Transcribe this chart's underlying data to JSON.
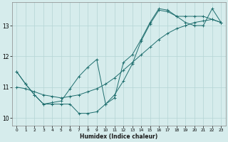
{
  "xlabel": "Humidex (Indice chaleur)",
  "xlim": [
    -0.5,
    23.5
  ],
  "ylim": [
    9.75,
    13.75
  ],
  "yticks": [
    10,
    11,
    12,
    13
  ],
  "xticks": [
    0,
    1,
    2,
    3,
    4,
    5,
    6,
    7,
    8,
    9,
    10,
    11,
    12,
    13,
    14,
    15,
    16,
    17,
    18,
    19,
    20,
    21,
    22,
    23
  ],
  "background_color": "#d6ecec",
  "grid_color": "#b4d4d4",
  "line_color": "#1e6e6e",
  "line1_y": [
    11.5,
    11.1,
    10.75,
    10.45,
    10.45,
    10.45,
    10.45,
    10.15,
    10.15,
    10.2,
    10.45,
    10.75,
    11.2,
    11.75,
    12.5,
    13.05,
    13.5,
    13.45,
    13.3,
    13.3,
    13.3,
    13.3,
    13.2,
    13.1
  ],
  "line2_y": [
    11.0,
    10.95,
    10.85,
    10.75,
    10.7,
    10.65,
    10.7,
    10.75,
    10.85,
    10.95,
    11.1,
    11.3,
    11.55,
    11.8,
    12.05,
    12.3,
    12.55,
    12.75,
    12.9,
    13.0,
    13.1,
    13.15,
    13.2,
    13.1
  ],
  "line3_y": [
    11.5,
    11.1,
    10.75,
    10.45,
    10.5,
    10.55,
    10.95,
    11.35,
    11.65,
    11.9,
    10.45,
    10.65,
    11.8,
    12.05,
    12.55,
    13.1,
    13.55,
    13.5,
    13.3,
    13.1,
    13.0,
    13.0,
    13.55,
    13.1
  ]
}
